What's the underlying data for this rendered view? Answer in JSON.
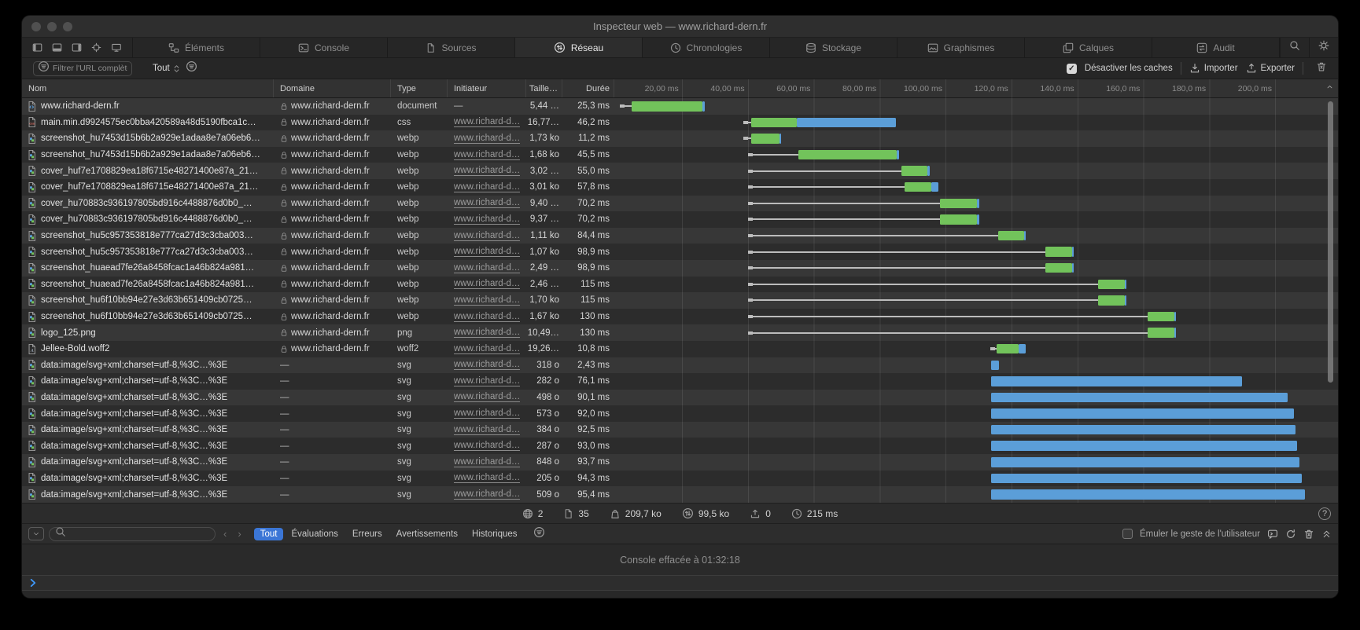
{
  "window": {
    "title": "Inspecteur web — www.richard-dern.fr"
  },
  "tabs": [
    {
      "label": "Éléments",
      "icon": "elements",
      "selected": false
    },
    {
      "label": "Console",
      "icon": "console",
      "selected": false
    },
    {
      "label": "Sources",
      "icon": "sources",
      "selected": false
    },
    {
      "label": "Réseau",
      "icon": "network",
      "selected": true
    },
    {
      "label": "Chronologies",
      "icon": "clock",
      "selected": false
    },
    {
      "label": "Stockage",
      "icon": "storage",
      "selected": false
    },
    {
      "label": "Graphismes",
      "icon": "graphics",
      "selected": false
    },
    {
      "label": "Calques",
      "icon": "layers",
      "selected": false
    },
    {
      "label": "Audit",
      "icon": "audit",
      "selected": false
    }
  ],
  "network_toolbar": {
    "filter_placeholder": "Filtrer l'URL complète",
    "scope_dropdown": "Tout",
    "disable_caches_label": "Désactiver les caches",
    "disable_caches_checked": true,
    "import_label": "Importer",
    "export_label": "Exporter"
  },
  "table": {
    "columns": {
      "name": "Nom",
      "domain": "Domaine",
      "type": "Type",
      "initiator": "Initiateur",
      "size": "Taille…",
      "duration": "Durée"
    },
    "timeline_ticks": [
      {
        "label": "20,00 ms",
        "ms": 20
      },
      {
        "label": "40,00 ms",
        "ms": 40
      },
      {
        "label": "60,00 ms",
        "ms": 60
      },
      {
        "label": "80,00 ms",
        "ms": 80
      },
      {
        "label": "100,00 ms",
        "ms": 100
      },
      {
        "label": "120,0 ms",
        "ms": 120
      },
      {
        "label": "140,0 ms",
        "ms": 140
      },
      {
        "label": "160,0 ms",
        "ms": 160
      },
      {
        "label": "180,0 ms",
        "ms": 180
      },
      {
        "label": "200,0 ms",
        "ms": 200
      }
    ],
    "rows": [
      {
        "icon": "document",
        "name": "www.richard-dern.fr",
        "lock": true,
        "domain": "www.richard-dern.fr",
        "type": "document",
        "initiator": "—",
        "size": "5,44 …",
        "duration": "25,3 ms",
        "bar": {
          "s": 1.2,
          "g": [
            4.8,
            26.3
          ],
          "b": [
            26.3,
            26.9
          ]
        }
      },
      {
        "icon": "css",
        "name": "main.min.d9924575ec0bba420589a48d5190fbca1c…",
        "lock": true,
        "domain": "www.richard-dern.fr",
        "type": "css",
        "initiator": "www.richard-d…",
        "size": "16,77…",
        "duration": "46,2 ms",
        "bar": {
          "s": 38.6,
          "g": [
            41,
            54.8
          ],
          "b": [
            54.8,
            85
          ]
        }
      },
      {
        "icon": "image",
        "name": "screenshot_hu7453d15b6b2a929e1adaa8e7a06eb6…",
        "lock": true,
        "domain": "www.richard-dern.fr",
        "type": "webp",
        "initiator": "www.richard-d…",
        "size": "1,73 ko",
        "duration": "11,2 ms",
        "bar": {
          "s": 38.6,
          "g": [
            41,
            49.6
          ],
          "b": [
            49.6,
            50.2
          ]
        }
      },
      {
        "icon": "image",
        "name": "screenshot_hu7453d15b6b2a929e1adaa8e7a06eb6…",
        "lock": true,
        "domain": "www.richard-dern.fr",
        "type": "webp",
        "initiator": "www.richard-d…",
        "size": "1,68 ko",
        "duration": "45,5 ms",
        "bar": {
          "s": 40,
          "g": [
            55.4,
            85.2
          ],
          "b": [
            85.2,
            85.8
          ]
        }
      },
      {
        "icon": "image",
        "name": "cover_huf7e1708829ea18f6715e48271400e87a_21…",
        "lock": true,
        "domain": "www.richard-dern.fr",
        "type": "webp",
        "initiator": "www.richard-d…",
        "size": "3,02 …",
        "duration": "55,0 ms",
        "bar": {
          "s": 40,
          "g": [
            86.6,
            94.6
          ],
          "b": [
            94.6,
            95.2
          ]
        }
      },
      {
        "icon": "image",
        "name": "cover_huf7e1708829ea18f6715e48271400e87a_21…",
        "lock": true,
        "domain": "www.richard-dern.fr",
        "type": "webp",
        "initiator": "www.richard-d…",
        "size": "3,01 ko",
        "duration": "57,8 ms",
        "bar": {
          "s": 40,
          "g": [
            87.6,
            95.8
          ],
          "b": [
            95.8,
            97.8
          ]
        }
      },
      {
        "icon": "image",
        "name": "cover_hu70883c936197805bd916c4488876d0b0_…",
        "lock": true,
        "domain": "www.richard-dern.fr",
        "type": "webp",
        "initiator": "www.richard-d…",
        "size": "9,40 …",
        "duration": "70,2 ms",
        "bar": {
          "s": 40,
          "g": [
            98.4,
            109.6
          ],
          "b": [
            109.6,
            110.2
          ]
        }
      },
      {
        "icon": "image",
        "name": "cover_hu70883c936197805bd916c4488876d0b0_…",
        "lock": true,
        "domain": "www.richard-dern.fr",
        "type": "webp",
        "initiator": "www.richard-d…",
        "size": "9,37 …",
        "duration": "70,2 ms",
        "bar": {
          "s": 40,
          "g": [
            98.4,
            109.6
          ],
          "b": [
            109.6,
            110.2
          ]
        }
      },
      {
        "icon": "image",
        "name": "screenshot_hu5c957353818e777ca27d3c3cba003…",
        "lock": true,
        "domain": "www.richard-dern.fr",
        "type": "webp",
        "initiator": "www.richard-d…",
        "size": "1,11 ko",
        "duration": "84,4 ms",
        "bar": {
          "s": 40,
          "g": [
            115.9,
            123.8
          ],
          "b": [
            123.8,
            124.4
          ]
        }
      },
      {
        "icon": "image",
        "name": "screenshot_hu5c957353818e777ca27d3c3cba003…",
        "lock": true,
        "domain": "www.richard-dern.fr",
        "type": "webp",
        "initiator": "www.richard-d…",
        "size": "1,07 ko",
        "duration": "98,9 ms",
        "bar": {
          "s": 40,
          "g": [
            130.3,
            138.3
          ],
          "b": [
            138.3,
            138.9
          ]
        }
      },
      {
        "icon": "image",
        "name": "screenshot_huaead7fe26a8458fcac1a46b824a981…",
        "lock": true,
        "domain": "www.richard-dern.fr",
        "type": "webp",
        "initiator": "www.richard-d…",
        "size": "2,49 …",
        "duration": "98,9 ms",
        "bar": {
          "s": 40,
          "g": [
            130.3,
            138.3
          ],
          "b": [
            138.3,
            138.9
          ]
        }
      },
      {
        "icon": "image",
        "name": "screenshot_huaead7fe26a8458fcac1a46b824a981…",
        "lock": true,
        "domain": "www.richard-dern.fr",
        "type": "webp",
        "initiator": "www.richard-d…",
        "size": "2,46 …",
        "duration": "115 ms",
        "bar": {
          "s": 40,
          "g": [
            146.2,
            154.4
          ],
          "b": [
            154.4,
            155
          ]
        }
      },
      {
        "icon": "image",
        "name": "screenshot_hu6f10bb94e27e3d63b651409cb0725…",
        "lock": true,
        "domain": "www.richard-dern.fr",
        "type": "webp",
        "initiator": "www.richard-d…",
        "size": "1,70 ko",
        "duration": "115 ms",
        "bar": {
          "s": 40,
          "g": [
            146.2,
            154.4
          ],
          "b": [
            154.4,
            155
          ]
        }
      },
      {
        "icon": "image",
        "name": "screenshot_hu6f10bb94e27e3d63b651409cb0725…",
        "lock": true,
        "domain": "www.richard-dern.fr",
        "type": "webp",
        "initiator": "www.richard-d…",
        "size": "1,67 ko",
        "duration": "130 ms",
        "bar": {
          "s": 40,
          "g": [
            161.4,
            169.4
          ],
          "b": [
            169.4,
            170
          ]
        }
      },
      {
        "icon": "image",
        "name": "logo_125.png",
        "lock": true,
        "domain": "www.richard-dern.fr",
        "type": "png",
        "initiator": "www.richard-d…",
        "size": "10,49…",
        "duration": "130 ms",
        "bar": {
          "s": 40,
          "g": [
            161.4,
            169.4
          ],
          "b": [
            169.4,
            170
          ]
        }
      },
      {
        "icon": "font",
        "name": "Jellee-Bold.woff2",
        "lock": true,
        "domain": "www.richard-dern.fr",
        "type": "woff2",
        "initiator": "www.richard-d…",
        "size": "19,26…",
        "duration": "10,8 ms",
        "bar": {
          "s": 113.6,
          "g": [
            115.5,
            122.3
          ],
          "b": [
            122.3,
            124.4
          ]
        }
      },
      {
        "icon": "image",
        "name": "data:image/svg+xml;charset=utf-8,%3C…%3E",
        "lock": false,
        "domain": "—",
        "type": "svg",
        "initiator": "www.richard-d…",
        "size": "318 o",
        "duration": "2,43 ms",
        "bar": {
          "b": [
            113.8,
            116.2
          ]
        }
      },
      {
        "icon": "image",
        "name": "data:image/svg+xml;charset=utf-8,%3C…%3E",
        "lock": false,
        "domain": "—",
        "type": "svg",
        "initiator": "www.richard-d…",
        "size": "282 o",
        "duration": "76,1 ms",
        "bar": {
          "b": [
            113.8,
            189.9
          ]
        }
      },
      {
        "icon": "image",
        "name": "data:image/svg+xml;charset=utf-8,%3C…%3E",
        "lock": false,
        "domain": "—",
        "type": "svg",
        "initiator": "www.richard-d…",
        "size": "498 o",
        "duration": "90,1 ms",
        "bar": {
          "b": [
            113.8,
            203.9
          ]
        }
      },
      {
        "icon": "image",
        "name": "data:image/svg+xml;charset=utf-8,%3C…%3E",
        "lock": false,
        "domain": "—",
        "type": "svg",
        "initiator": "www.richard-d…",
        "size": "573 o",
        "duration": "92,0 ms",
        "bar": {
          "b": [
            113.8,
            205.8
          ]
        }
      },
      {
        "icon": "image",
        "name": "data:image/svg+xml;charset=utf-8,%3C…%3E",
        "lock": false,
        "domain": "—",
        "type": "svg",
        "initiator": "www.richard-d…",
        "size": "384 o",
        "duration": "92,5 ms",
        "bar": {
          "b": [
            113.8,
            206.3
          ]
        }
      },
      {
        "icon": "image",
        "name": "data:image/svg+xml;charset=utf-8,%3C…%3E",
        "lock": false,
        "domain": "—",
        "type": "svg",
        "initiator": "www.richard-d…",
        "size": "287 o",
        "duration": "93,0 ms",
        "bar": {
          "b": [
            113.8,
            206.8
          ]
        }
      },
      {
        "icon": "image",
        "name": "data:image/svg+xml;charset=utf-8,%3C…%3E",
        "lock": false,
        "domain": "—",
        "type": "svg",
        "initiator": "www.richard-d…",
        "size": "848 o",
        "duration": "93,7 ms",
        "bar": {
          "b": [
            113.8,
            207.5
          ]
        }
      },
      {
        "icon": "image",
        "name": "data:image/svg+xml;charset=utf-8,%3C…%3E",
        "lock": false,
        "domain": "—",
        "type": "svg",
        "initiator": "www.richard-d…",
        "size": "205 o",
        "duration": "94,3 ms",
        "bar": {
          "b": [
            113.8,
            208.1
          ]
        }
      },
      {
        "icon": "image",
        "name": "data:image/svg+xml;charset=utf-8,%3C…%3E",
        "lock": false,
        "domain": "—",
        "type": "svg",
        "initiator": "www.richard-d…",
        "size": "509 o",
        "duration": "95,4 ms",
        "bar": {
          "b": [
            113.8,
            209.2
          ]
        }
      }
    ]
  },
  "summary": [
    {
      "icon": "globe",
      "value": "2"
    },
    {
      "icon": "page",
      "value": "35"
    },
    {
      "icon": "bag",
      "value": "209,7 ko"
    },
    {
      "icon": "transfer",
      "value": "99,5 ko"
    },
    {
      "icon": "cache",
      "value": "0"
    },
    {
      "icon": "clock",
      "value": "215 ms"
    }
  ],
  "help_label": "?",
  "console": {
    "scopes": [
      "Tout",
      "Évaluations",
      "Erreurs",
      "Avertissements",
      "Historiques"
    ],
    "selected_scope": "Tout",
    "emulate_label": "Émuler le geste de l'utilisateur",
    "emulate_checked": false,
    "message": "Console effacée à 01:32:18"
  },
  "colors": {
    "green_bar": "#72c35b",
    "blue_bar": "#5b9ed8",
    "wait_line": "#bcbcbc",
    "accent_blue": "#3b76d6"
  }
}
